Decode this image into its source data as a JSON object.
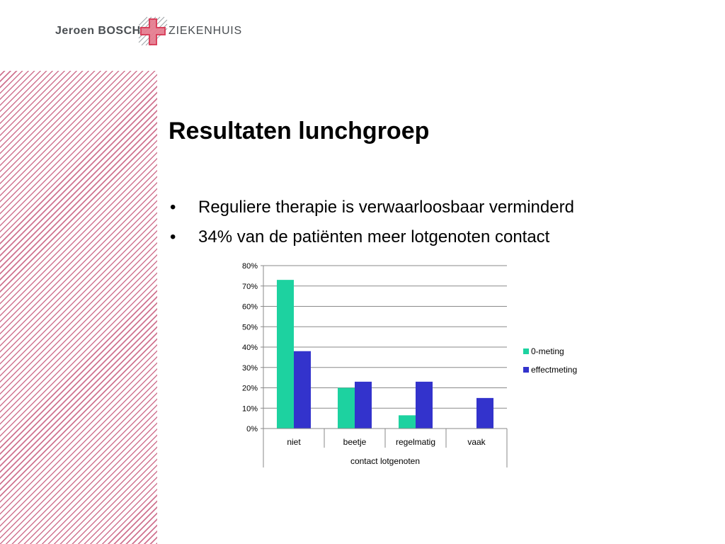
{
  "logo": {
    "left_text": "Jeroen BOSCH",
    "right_text": "ZIEKENHUIS"
  },
  "slide": {
    "title": "Resultaten lunchgroep",
    "bullets": [
      "Reguliere therapie is verwaarloosbaar verminderd",
      "34% van de patiënten meer lotgenoten contact"
    ]
  },
  "colors": {
    "stripe": "#c75a7c",
    "series_0": "#1dd2a0",
    "series_1": "#3333cc"
  },
  "chart_data": {
    "type": "bar",
    "categories": [
      "niet",
      "beetje",
      "regelmatig",
      "vaak"
    ],
    "xlabel": "contact lotgenoten",
    "ylabel": "",
    "ylim": [
      0,
      80
    ],
    "yticks": [
      "0%",
      "10%",
      "20%",
      "30%",
      "40%",
      "50%",
      "60%",
      "70%",
      "80%"
    ],
    "grid": true,
    "legend": "right",
    "series": [
      {
        "name": "0-meting",
        "values": [
          73,
          20,
          6.5,
          0
        ]
      },
      {
        "name": "effectmeting",
        "values": [
          38,
          23,
          23,
          15
        ]
      }
    ]
  }
}
